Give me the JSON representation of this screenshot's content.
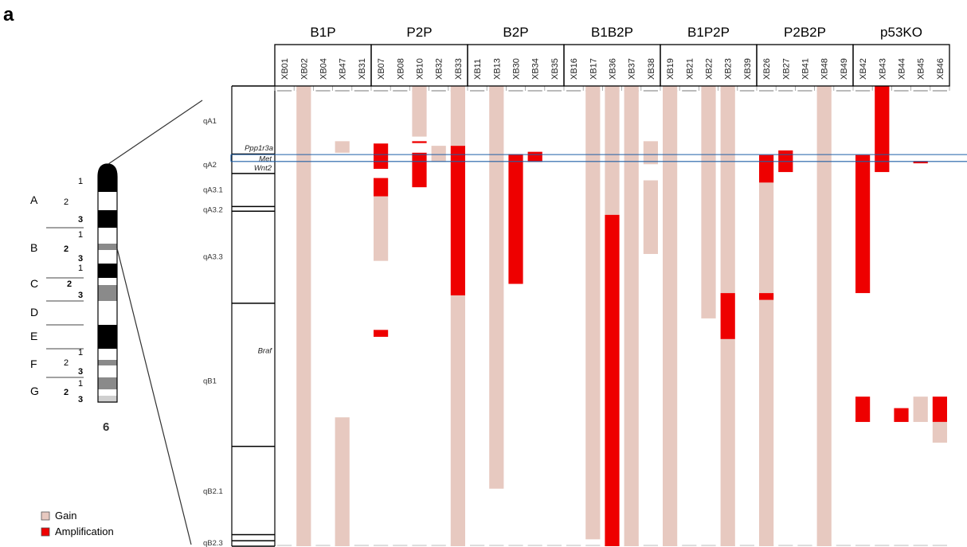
{
  "panel_letter": "a",
  "groups": [
    {
      "label": "B1P",
      "samples": [
        "XB01",
        "XB02",
        "XB04",
        "XB47",
        "XB31"
      ]
    },
    {
      "label": "P2P",
      "samples": [
        "XB07",
        "XB08",
        "XB10",
        "XB32",
        "XB33"
      ]
    },
    {
      "label": "B2P",
      "samples": [
        "XB11",
        "XB13",
        "XB30",
        "XB34",
        "XB35"
      ]
    },
    {
      "label": "B1B2P",
      "samples": [
        "XB16",
        "XB17",
        "XB36",
        "XB37",
        "XB38"
      ]
    },
    {
      "label": "B1P2P",
      "samples": [
        "XB19",
        "XB21",
        "XB22",
        "XB23",
        "XB39"
      ]
    },
    {
      "label": "P2B2P",
      "samples": [
        "XB26",
        "XB27",
        "XB41",
        "XB48",
        "XB49"
      ]
    },
    {
      "label": "p53KO",
      "samples": [
        "XB42",
        "XB43",
        "XB44",
        "XB45",
        "XB46"
      ]
    }
  ],
  "bands": [
    "qA1",
    "qA2",
    "qA3.1",
    "qA3.2",
    "qA3.3",
    "qB1",
    "qB2.1",
    "qB2.3"
  ],
  "genes": [
    "Ppp1r3a",
    "Met",
    "Wnt2",
    "Braf"
  ],
  "chromosome": {
    "number": "6",
    "regions": [
      "A",
      "B",
      "C",
      "D",
      "E",
      "F",
      "G"
    ],
    "sub_bands": [
      {
        "text": "1",
        "bold": false
      },
      {
        "text": "2",
        "bold": false
      },
      {
        "text": "3",
        "bold": true
      },
      {
        "text": "1",
        "bold": false
      },
      {
        "text": "2",
        "bold": true
      },
      {
        "text": "3",
        "bold": true
      },
      {
        "text": "1",
        "bold": false
      },
      {
        "text": "2",
        "bold": true
      },
      {
        "text": "3",
        "bold": true
      },
      {
        "text": "1",
        "bold": false
      },
      {
        "text": "2",
        "bold": false
      },
      {
        "text": "3",
        "bold": true
      },
      {
        "text": "1",
        "bold": false
      },
      {
        "text": "2",
        "bold": true
      },
      {
        "text": "3",
        "bold": true
      }
    ]
  },
  "legend": [
    {
      "label": "Gain",
      "type": "gain"
    },
    {
      "label": "Amplification",
      "type": "amplification"
    }
  ],
  "colors": {
    "gain": "#e7c9c0",
    "amplification": "#ee0000",
    "loss_mark": "#c0244a",
    "met_box": "#1f5fa6",
    "grid": "#000000",
    "chr_dark": "#000000",
    "chr_mid": "#8a8a8a",
    "chr_light": "#cfcfcf"
  },
  "segments": [
    {
      "sample": "XB02",
      "type": "gain",
      "start": 0.0,
      "end": 1.0
    },
    {
      "sample": "XB47",
      "type": "gain",
      "start": 0.12,
      "end": 0.145
    },
    {
      "sample": "XB47",
      "type": "gain",
      "start": 0.72,
      "end": 1.0
    },
    {
      "sample": "XB07",
      "type": "amplification",
      "start": 0.125,
      "end": 0.18
    },
    {
      "sample": "XB07",
      "type": "amplification",
      "start": 0.2,
      "end": 0.24
    },
    {
      "sample": "XB07",
      "type": "gain",
      "start": 0.24,
      "end": 0.38
    },
    {
      "sample": "XB07",
      "type": "amplification",
      "start": 0.53,
      "end": 0.545
    },
    {
      "sample": "XB10",
      "type": "gain",
      "start": 0.0,
      "end": 0.11
    },
    {
      "sample": "XB10",
      "type": "amplification",
      "start": 0.12,
      "end": 0.124
    },
    {
      "sample": "XB10",
      "type": "amplification",
      "start": 0.145,
      "end": 0.22
    },
    {
      "sample": "XB32",
      "type": "gain",
      "start": 0.13,
      "end": 0.165
    },
    {
      "sample": "XB33",
      "type": "gain",
      "start": 0.0,
      "end": 0.13
    },
    {
      "sample": "XB33",
      "type": "amplification",
      "start": 0.13,
      "end": 0.455
    },
    {
      "sample": "XB33",
      "type": "gain",
      "start": 0.455,
      "end": 1.0
    },
    {
      "sample": "XB13",
      "type": "gain",
      "start": 0.0,
      "end": 0.875
    },
    {
      "sample": "XB30",
      "type": "amplification",
      "start": 0.148,
      "end": 0.43
    },
    {
      "sample": "XB34",
      "type": "amplification",
      "start": 0.143,
      "end": 0.165
    },
    {
      "sample": "XB17",
      "type": "gain",
      "start": 0.0,
      "end": 0.985
    },
    {
      "sample": "XB36",
      "type": "gain",
      "start": 0.0,
      "end": 0.28
    },
    {
      "sample": "XB36",
      "type": "amplification",
      "start": 0.28,
      "end": 1.0
    },
    {
      "sample": "XB37",
      "type": "gain",
      "start": 0.0,
      "end": 1.0
    },
    {
      "sample": "XB38",
      "type": "gain",
      "start": 0.12,
      "end": 0.17
    },
    {
      "sample": "XB38",
      "type": "gain",
      "start": 0.205,
      "end": 0.365
    },
    {
      "sample": "XB19",
      "type": "gain",
      "start": 0.0,
      "end": 1.0
    },
    {
      "sample": "XB22",
      "type": "gain",
      "start": 0.0,
      "end": 0.505
    },
    {
      "sample": "XB23",
      "type": "gain",
      "start": 0.0,
      "end": 0.45
    },
    {
      "sample": "XB23",
      "type": "amplification",
      "start": 0.45,
      "end": 0.55
    },
    {
      "sample": "XB23",
      "type": "gain",
      "start": 0.55,
      "end": 1.0
    },
    {
      "sample": "XB26",
      "type": "amplification",
      "start": 0.15,
      "end": 0.21
    },
    {
      "sample": "XB26",
      "type": "gain",
      "start": 0.21,
      "end": 0.45
    },
    {
      "sample": "XB26",
      "type": "amplification",
      "start": 0.45,
      "end": 0.465
    },
    {
      "sample": "XB26",
      "type": "gain",
      "start": 0.465,
      "end": 1.0
    },
    {
      "sample": "XB27",
      "type": "amplification",
      "start": 0.14,
      "end": 0.187
    },
    {
      "sample": "XB48",
      "type": "gain",
      "start": 0.0,
      "end": 1.0
    },
    {
      "sample": "XB42",
      "type": "amplification",
      "start": 0.15,
      "end": 0.45
    },
    {
      "sample": "XB42",
      "type": "amplification",
      "start": 0.675,
      "end": 0.73
    },
    {
      "sample": "XB43",
      "type": "amplification",
      "start": 0.0,
      "end": 0.187
    },
    {
      "sample": "XB44",
      "type": "amplification",
      "start": 0.7,
      "end": 0.73
    },
    {
      "sample": "XB45",
      "type": "amplification",
      "start": 0.163,
      "end": 0.168
    },
    {
      "sample": "XB45",
      "type": "gain",
      "start": 0.675,
      "end": 0.73
    },
    {
      "sample": "XB46",
      "type": "amplification",
      "start": 0.675,
      "end": 0.73
    },
    {
      "sample": "XB46",
      "type": "gain",
      "start": 0.73,
      "end": 0.775
    }
  ]
}
